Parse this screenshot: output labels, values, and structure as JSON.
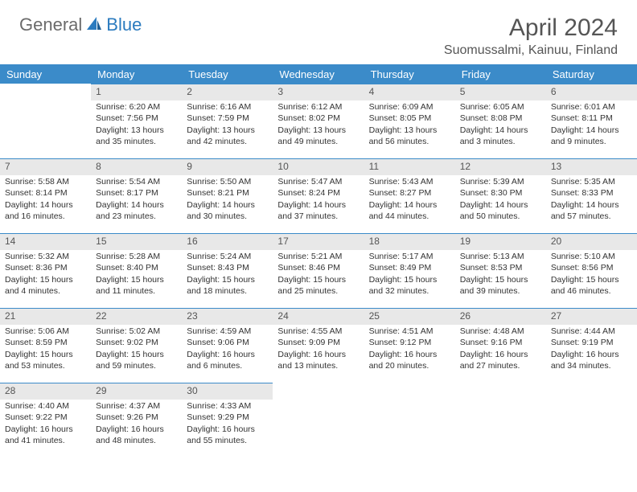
{
  "brand": {
    "text_general": "General",
    "text_blue": "Blue",
    "icon_color": "#2b7bbf"
  },
  "header": {
    "month_title": "April 2024",
    "location": "Suomussalmi, Kainuu, Finland"
  },
  "colors": {
    "header_bg": "#3b8bc9",
    "header_text": "#ffffff",
    "daynum_bg": "#e8e8e8",
    "daynum_border": "#3b8bc9",
    "body_text": "#333333",
    "title_text": "#555555"
  },
  "weekdays": [
    "Sunday",
    "Monday",
    "Tuesday",
    "Wednesday",
    "Thursday",
    "Friday",
    "Saturday"
  ],
  "weeks": [
    [
      {
        "day": "",
        "sunrise": "",
        "sunset": "",
        "daylight": ""
      },
      {
        "day": "1",
        "sunrise": "Sunrise: 6:20 AM",
        "sunset": "Sunset: 7:56 PM",
        "daylight": "Daylight: 13 hours and 35 minutes."
      },
      {
        "day": "2",
        "sunrise": "Sunrise: 6:16 AM",
        "sunset": "Sunset: 7:59 PM",
        "daylight": "Daylight: 13 hours and 42 minutes."
      },
      {
        "day": "3",
        "sunrise": "Sunrise: 6:12 AM",
        "sunset": "Sunset: 8:02 PM",
        "daylight": "Daylight: 13 hours and 49 minutes."
      },
      {
        "day": "4",
        "sunrise": "Sunrise: 6:09 AM",
        "sunset": "Sunset: 8:05 PM",
        "daylight": "Daylight: 13 hours and 56 minutes."
      },
      {
        "day": "5",
        "sunrise": "Sunrise: 6:05 AM",
        "sunset": "Sunset: 8:08 PM",
        "daylight": "Daylight: 14 hours and 3 minutes."
      },
      {
        "day": "6",
        "sunrise": "Sunrise: 6:01 AM",
        "sunset": "Sunset: 8:11 PM",
        "daylight": "Daylight: 14 hours and 9 minutes."
      }
    ],
    [
      {
        "day": "7",
        "sunrise": "Sunrise: 5:58 AM",
        "sunset": "Sunset: 8:14 PM",
        "daylight": "Daylight: 14 hours and 16 minutes."
      },
      {
        "day": "8",
        "sunrise": "Sunrise: 5:54 AM",
        "sunset": "Sunset: 8:17 PM",
        "daylight": "Daylight: 14 hours and 23 minutes."
      },
      {
        "day": "9",
        "sunrise": "Sunrise: 5:50 AM",
        "sunset": "Sunset: 8:21 PM",
        "daylight": "Daylight: 14 hours and 30 minutes."
      },
      {
        "day": "10",
        "sunrise": "Sunrise: 5:47 AM",
        "sunset": "Sunset: 8:24 PM",
        "daylight": "Daylight: 14 hours and 37 minutes."
      },
      {
        "day": "11",
        "sunrise": "Sunrise: 5:43 AM",
        "sunset": "Sunset: 8:27 PM",
        "daylight": "Daylight: 14 hours and 44 minutes."
      },
      {
        "day": "12",
        "sunrise": "Sunrise: 5:39 AM",
        "sunset": "Sunset: 8:30 PM",
        "daylight": "Daylight: 14 hours and 50 minutes."
      },
      {
        "day": "13",
        "sunrise": "Sunrise: 5:35 AM",
        "sunset": "Sunset: 8:33 PM",
        "daylight": "Daylight: 14 hours and 57 minutes."
      }
    ],
    [
      {
        "day": "14",
        "sunrise": "Sunrise: 5:32 AM",
        "sunset": "Sunset: 8:36 PM",
        "daylight": "Daylight: 15 hours and 4 minutes."
      },
      {
        "day": "15",
        "sunrise": "Sunrise: 5:28 AM",
        "sunset": "Sunset: 8:40 PM",
        "daylight": "Daylight: 15 hours and 11 minutes."
      },
      {
        "day": "16",
        "sunrise": "Sunrise: 5:24 AM",
        "sunset": "Sunset: 8:43 PM",
        "daylight": "Daylight: 15 hours and 18 minutes."
      },
      {
        "day": "17",
        "sunrise": "Sunrise: 5:21 AM",
        "sunset": "Sunset: 8:46 PM",
        "daylight": "Daylight: 15 hours and 25 minutes."
      },
      {
        "day": "18",
        "sunrise": "Sunrise: 5:17 AM",
        "sunset": "Sunset: 8:49 PM",
        "daylight": "Daylight: 15 hours and 32 minutes."
      },
      {
        "day": "19",
        "sunrise": "Sunrise: 5:13 AM",
        "sunset": "Sunset: 8:53 PM",
        "daylight": "Daylight: 15 hours and 39 minutes."
      },
      {
        "day": "20",
        "sunrise": "Sunrise: 5:10 AM",
        "sunset": "Sunset: 8:56 PM",
        "daylight": "Daylight: 15 hours and 46 minutes."
      }
    ],
    [
      {
        "day": "21",
        "sunrise": "Sunrise: 5:06 AM",
        "sunset": "Sunset: 8:59 PM",
        "daylight": "Daylight: 15 hours and 53 minutes."
      },
      {
        "day": "22",
        "sunrise": "Sunrise: 5:02 AM",
        "sunset": "Sunset: 9:02 PM",
        "daylight": "Daylight: 15 hours and 59 minutes."
      },
      {
        "day": "23",
        "sunrise": "Sunrise: 4:59 AM",
        "sunset": "Sunset: 9:06 PM",
        "daylight": "Daylight: 16 hours and 6 minutes."
      },
      {
        "day": "24",
        "sunrise": "Sunrise: 4:55 AM",
        "sunset": "Sunset: 9:09 PM",
        "daylight": "Daylight: 16 hours and 13 minutes."
      },
      {
        "day": "25",
        "sunrise": "Sunrise: 4:51 AM",
        "sunset": "Sunset: 9:12 PM",
        "daylight": "Daylight: 16 hours and 20 minutes."
      },
      {
        "day": "26",
        "sunrise": "Sunrise: 4:48 AM",
        "sunset": "Sunset: 9:16 PM",
        "daylight": "Daylight: 16 hours and 27 minutes."
      },
      {
        "day": "27",
        "sunrise": "Sunrise: 4:44 AM",
        "sunset": "Sunset: 9:19 PM",
        "daylight": "Daylight: 16 hours and 34 minutes."
      }
    ],
    [
      {
        "day": "28",
        "sunrise": "Sunrise: 4:40 AM",
        "sunset": "Sunset: 9:22 PM",
        "daylight": "Daylight: 16 hours and 41 minutes."
      },
      {
        "day": "29",
        "sunrise": "Sunrise: 4:37 AM",
        "sunset": "Sunset: 9:26 PM",
        "daylight": "Daylight: 16 hours and 48 minutes."
      },
      {
        "day": "30",
        "sunrise": "Sunrise: 4:33 AM",
        "sunset": "Sunset: 9:29 PM",
        "daylight": "Daylight: 16 hours and 55 minutes."
      },
      {
        "day": "",
        "sunrise": "",
        "sunset": "",
        "daylight": ""
      },
      {
        "day": "",
        "sunrise": "",
        "sunset": "",
        "daylight": ""
      },
      {
        "day": "",
        "sunrise": "",
        "sunset": "",
        "daylight": ""
      },
      {
        "day": "",
        "sunrise": "",
        "sunset": "",
        "daylight": ""
      }
    ]
  ]
}
